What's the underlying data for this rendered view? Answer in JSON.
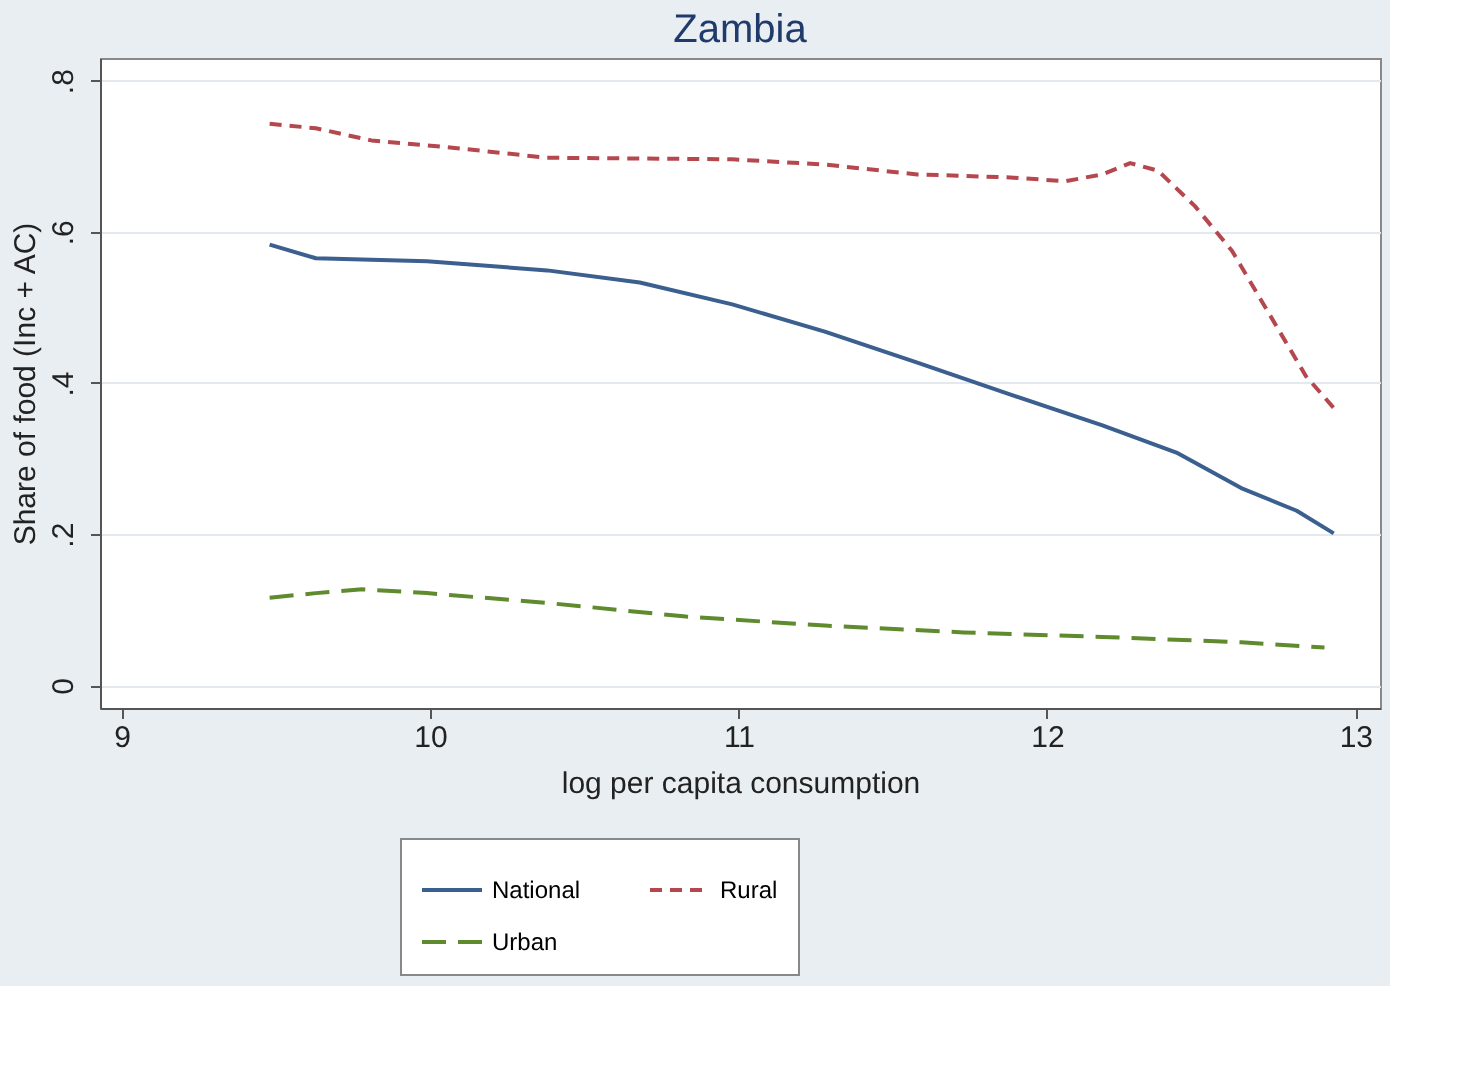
{
  "chart_data": {
    "type": "line",
    "title": "Zambia",
    "xlabel": "log per capita consumption",
    "ylabel": "Share of food (Inc + AC)",
    "xlim": [
      8.93,
      13.08
    ],
    "xticks": [
      9,
      10,
      11,
      12,
      13
    ],
    "ylim": [
      -0.03,
      0.83
    ],
    "yticks": [
      {
        "value": 0,
        "label": "0"
      },
      {
        "value": 0.2,
        "label": ".2"
      },
      {
        "value": 0.4,
        "label": ".4"
      },
      {
        "value": 0.6,
        "label": ".6"
      },
      {
        "value": 0.8,
        "label": ".8"
      }
    ],
    "grid": "y",
    "legend": "bottom",
    "marker": "none",
    "series": [
      {
        "name": "National",
        "color": "#3b5f8f",
        "line_style": "solid",
        "x": [
          9.48,
          9.63,
          9.99,
          10.38,
          10.68,
          10.98,
          11.28,
          11.58,
          11.88,
          12.18,
          12.42,
          12.63,
          12.81,
          12.93
        ],
        "values": [
          0.583,
          0.565,
          0.561,
          0.549,
          0.533,
          0.504,
          0.468,
          0.427,
          0.385,
          0.344,
          0.308,
          0.261,
          0.231,
          0.201
        ]
      },
      {
        "name": "Rural",
        "color": "#b5474f",
        "line_style": "dashed",
        "x": [
          9.48,
          9.63,
          9.81,
          10.08,
          10.38,
          10.98,
          11.28,
          11.58,
          11.88,
          12.06,
          12.18,
          12.27,
          12.36,
          12.48,
          12.6,
          12.72,
          12.84,
          12.93
        ],
        "values": [
          0.743,
          0.737,
          0.721,
          0.711,
          0.698,
          0.696,
          0.689,
          0.676,
          0.672,
          0.667,
          0.676,
          0.691,
          0.681,
          0.634,
          0.575,
          0.492,
          0.409,
          0.367
        ]
      },
      {
        "name": "Urban",
        "color": "#5f8a2e",
        "line_style": "longdash",
        "x": [
          9.48,
          9.63,
          9.78,
          9.99,
          10.38,
          10.83,
          11.28,
          11.73,
          12.18,
          12.63,
          12.9
        ],
        "values": [
          0.116,
          0.122,
          0.127,
          0.122,
          0.109,
          0.091,
          0.079,
          0.07,
          0.064,
          0.057,
          0.05
        ]
      }
    ]
  }
}
